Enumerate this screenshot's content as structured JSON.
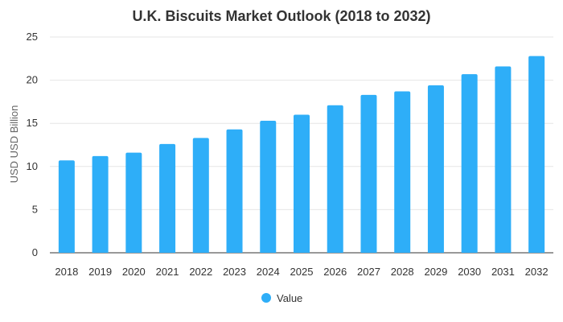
{
  "chart_data": {
    "type": "bar",
    "title": "U.K. Biscuits Market Outlook (2018 to 2032)",
    "xlabel": "",
    "ylabel": "USD USD Billion",
    "ylim": [
      0,
      25
    ],
    "yticks": [
      "0",
      "5",
      "10",
      "15",
      "20",
      "25"
    ],
    "grid": true,
    "legend_position": "bottom-center",
    "categories": [
      "2018",
      "2019",
      "2020",
      "2021",
      "2022",
      "2023",
      "2024",
      "2025",
      "2026",
      "2027",
      "2028",
      "2029",
      "2030",
      "2031",
      "2032"
    ],
    "series": [
      {
        "name": "Value",
        "color": "#2eaef8",
        "values": [
          10.7,
          11.2,
          11.6,
          12.6,
          13.3,
          14.3,
          15.3,
          16.0,
          17.1,
          18.3,
          18.7,
          19.4,
          20.7,
          21.6,
          22.8
        ]
      }
    ]
  }
}
